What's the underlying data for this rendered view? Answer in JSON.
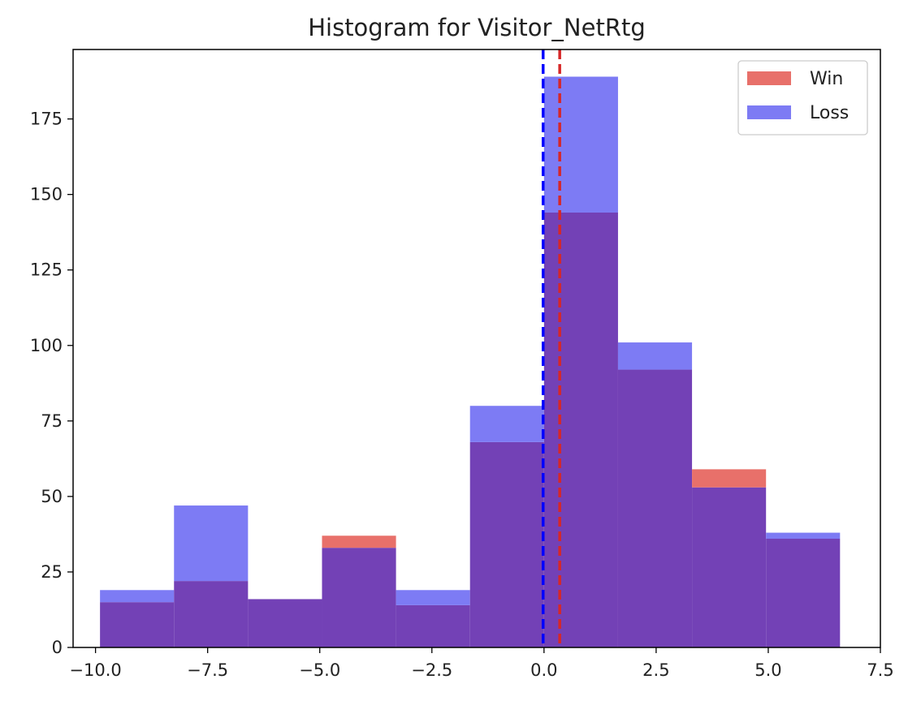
{
  "chart_data": {
    "type": "histogram",
    "title": "Histogram for Visitor_NetRtg",
    "xlabel": "",
    "ylabel": "",
    "xlim": [
      -10.5,
      7.5
    ],
    "ylim": [
      0,
      198
    ],
    "x_ticks": [
      -10.0,
      -7.5,
      -5.0,
      -2.5,
      0.0,
      2.5,
      5.0,
      7.5
    ],
    "x_tick_labels": [
      "−10.0",
      "−7.5",
      "−5.0",
      "−2.5",
      "0.0",
      "2.5",
      "5.0",
      "7.5"
    ],
    "y_ticks": [
      0,
      25,
      50,
      75,
      100,
      125,
      150,
      175
    ],
    "y_tick_labels": [
      "0",
      "25",
      "50",
      "75",
      "100",
      "125",
      "150",
      "175"
    ],
    "bin_edges": [
      -9.9,
      -8.25,
      -6.6,
      -4.95,
      -3.3,
      -1.65,
      0.0,
      1.65,
      3.3,
      4.95,
      6.6
    ],
    "series": [
      {
        "name": "Win",
        "color": "#e8706a",
        "values": [
          15,
          22,
          16,
          37,
          14,
          68,
          144,
          92,
          59,
          36
        ],
        "mean": 0.35
      },
      {
        "name": "Loss",
        "color": "#7d7bf4",
        "values": [
          19,
          47,
          16,
          33,
          19,
          80,
          189,
          101,
          53,
          38
        ],
        "mean": -0.02
      }
    ],
    "mean_line_colors": {
      "Win": "#d62728",
      "Loss": "#0000ff"
    },
    "overlap_color": "#7341b6",
    "legend": {
      "position": "upper-right",
      "entries": [
        "Win",
        "Loss"
      ]
    },
    "grid": false
  }
}
